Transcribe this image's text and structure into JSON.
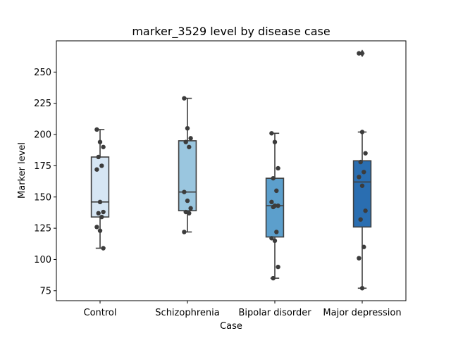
{
  "chart_data": {
    "type": "box",
    "title": "marker_3529 level by disease case",
    "xlabel": "Case",
    "ylabel": "Marker level",
    "ylim": [
      67,
      275
    ],
    "yticks": [
      75,
      100,
      125,
      150,
      175,
      200,
      225,
      250
    ],
    "categories": [
      "Control",
      "Schizophrenia",
      "Bipolar disorder",
      "Major depression"
    ],
    "colors": [
      "#d6e6f4",
      "#9ac6df",
      "#5c9fcc",
      "#2a6eb1"
    ],
    "boxes": [
      {
        "whisker_low": 109,
        "q1": 134,
        "median": 146,
        "q3": 182,
        "whisker_high": 204,
        "outliers": []
      },
      {
        "whisker_low": 122,
        "q1": 139,
        "median": 154,
        "q3": 195,
        "whisker_high": 229,
        "outliers": []
      },
      {
        "whisker_low": 85,
        "q1": 118,
        "median": 143,
        "q3": 165,
        "whisker_high": 201,
        "outliers": []
      },
      {
        "whisker_low": 77,
        "q1": 126,
        "median": 162,
        "q3": 179,
        "whisker_high": 202,
        "outliers": [
          265
        ]
      }
    ],
    "points": [
      [
        204,
        194,
        190,
        182,
        175,
        172,
        146,
        138,
        137,
        134,
        126,
        123,
        109
      ],
      [
        229,
        205,
        197,
        194,
        190,
        154,
        147,
        141,
        138,
        137,
        122
      ],
      [
        201,
        194,
        173,
        165,
        155,
        146,
        143,
        143,
        142,
        122,
        117,
        115,
        94,
        85
      ],
      [
        265,
        202,
        185,
        178,
        170,
        166,
        159,
        139,
        132,
        110,
        101,
        77
      ]
    ]
  }
}
